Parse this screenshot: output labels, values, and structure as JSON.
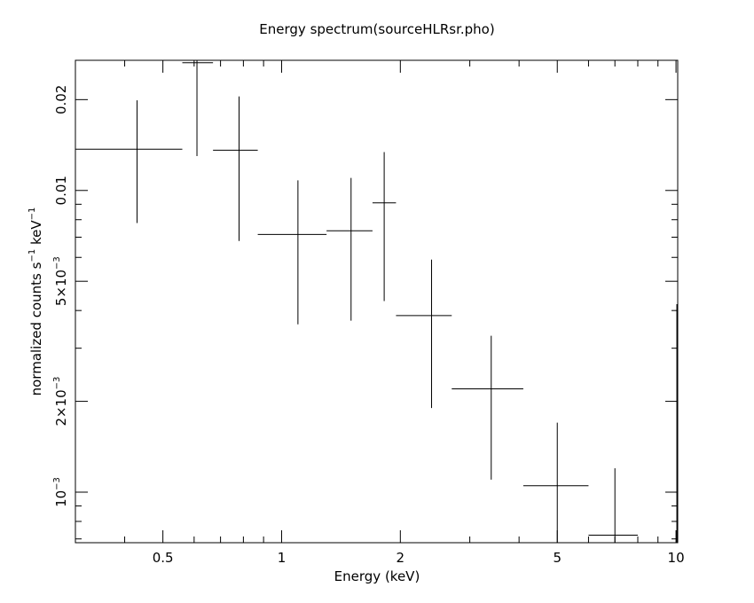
{
  "chart_data": {
    "type": "scatter",
    "title": "Energy spectrum(sourceHLRsr.pho)",
    "xlabel": "Energy (keV)",
    "ylabel": {
      "prefix": "normalized counts s",
      "exp1": "−1",
      "middle": " keV",
      "exp2": "−1"
    },
    "x_scale": "log",
    "y_scale": "log",
    "xlim": [
      0.3,
      10.1
    ],
    "ylim": [
      0.00068,
      0.027
    ],
    "x_ticks": [
      {
        "value": 0.5,
        "label": "0.5"
      },
      {
        "value": 1,
        "label": "1"
      },
      {
        "value": 2,
        "label": "2"
      },
      {
        "value": 5,
        "label": "5"
      },
      {
        "value": 10,
        "label": "10"
      }
    ],
    "y_ticks": [
      {
        "value": 0.001,
        "mant": "10",
        "exp": "−3"
      },
      {
        "value": 0.002,
        "mant": "2×10",
        "exp": "−3"
      },
      {
        "value": 0.005,
        "mant": "5×10",
        "exp": "−3"
      },
      {
        "value": 0.01,
        "mant": "0.01",
        "exp": ""
      },
      {
        "value": 0.02,
        "mant": "0.02",
        "exp": ""
      }
    ],
    "grid": false,
    "legend": "none",
    "points": [
      {
        "x": 0.43,
        "x_lo": 0.3,
        "x_hi": 0.56,
        "y": 0.0137,
        "y_lo": 0.0078,
        "y_hi": 0.0199
      },
      {
        "x": 0.61,
        "x_lo": 0.56,
        "x_hi": 0.67,
        "y": 0.0265,
        "y_lo": 0.013,
        "y_hi": 0.0275
      },
      {
        "x": 0.78,
        "x_lo": 0.67,
        "x_hi": 0.87,
        "y": 0.0136,
        "y_lo": 0.0068,
        "y_hi": 0.0205
      },
      {
        "x": 1.1,
        "x_lo": 0.87,
        "x_hi": 1.3,
        "y": 0.00715,
        "y_lo": 0.0036,
        "y_hi": 0.0108
      },
      {
        "x": 1.5,
        "x_lo": 1.3,
        "x_hi": 1.7,
        "y": 0.00735,
        "y_lo": 0.0037,
        "y_hi": 0.011
      },
      {
        "x": 1.82,
        "x_lo": 1.7,
        "x_hi": 1.95,
        "y": 0.0091,
        "y_lo": 0.0043,
        "y_hi": 0.0134
      },
      {
        "x": 2.4,
        "x_lo": 1.95,
        "x_hi": 2.7,
        "y": 0.00385,
        "y_lo": 0.0019,
        "y_hi": 0.0059
      },
      {
        "x": 3.4,
        "x_lo": 2.7,
        "x_hi": 4.1,
        "y": 0.0022,
        "y_lo": 0.0011,
        "y_hi": 0.0033
      },
      {
        "x": 5.0,
        "x_lo": 4.1,
        "x_hi": 6.0,
        "y": 0.00105,
        "y_lo": 0.00068,
        "y_hi": 0.0017
      },
      {
        "x": 7.0,
        "x_lo": 6.0,
        "x_hi": 8.0,
        "y": 0.00072,
        "y_lo": 0.00068,
        "y_hi": 0.0012
      },
      {
        "x": 10.05,
        "x_lo": 10.05,
        "x_hi": 10.05,
        "y": 0.0025,
        "y_lo": 0.00068,
        "y_hi": 0.0042
      }
    ]
  }
}
